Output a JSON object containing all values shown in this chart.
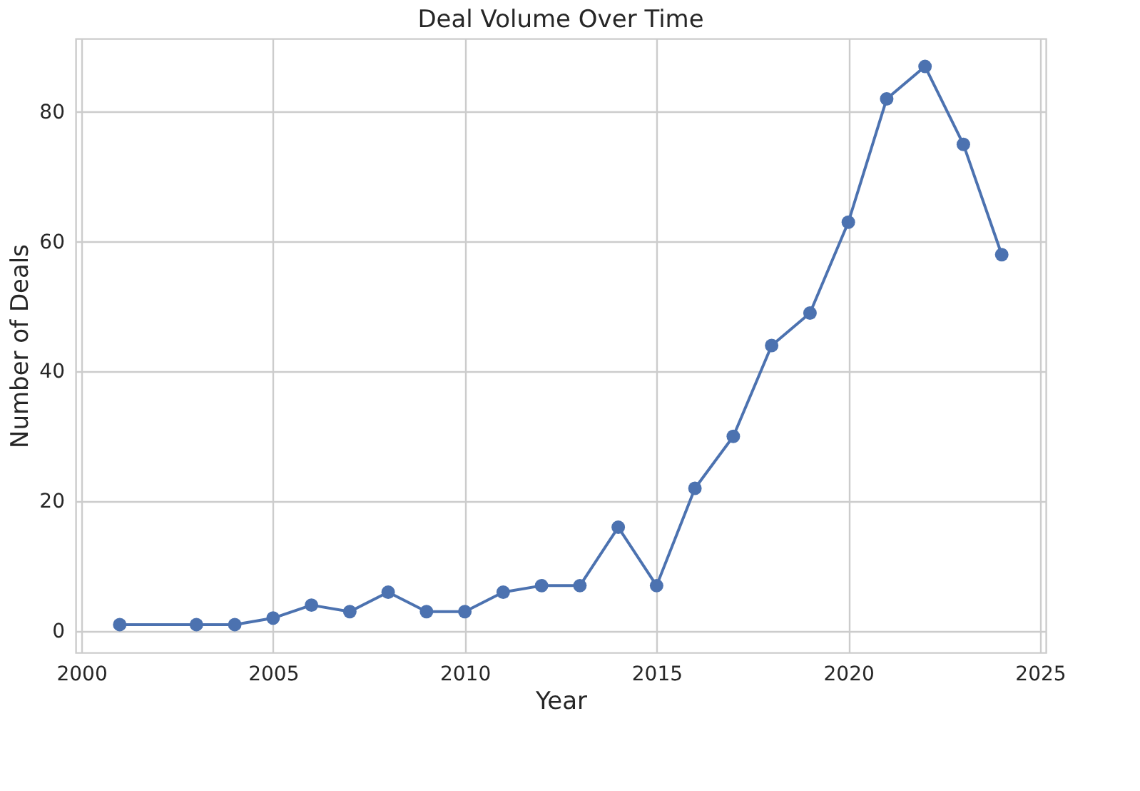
{
  "chart_data": {
    "type": "line",
    "title": "Deal Volume Over Time",
    "xlabel": "Year",
    "ylabel": "Number of Deals",
    "x": [
      2001,
      2003,
      2004,
      2005,
      2006,
      2007,
      2008,
      2009,
      2010,
      2011,
      2012,
      2013,
      2014,
      2015,
      2016,
      2017,
      2018,
      2019,
      2020,
      2021,
      2022,
      2023,
      2024
    ],
    "series": [
      {
        "color": "#4c72b0",
        "values": [
          1,
          1,
          1,
          2,
          4,
          3,
          6,
          3,
          3,
          6,
          7,
          7,
          16,
          7,
          22,
          30,
          44,
          49,
          63,
          82,
          87,
          75,
          58
        ]
      }
    ],
    "xlim": [
      1999.85,
      2025.15
    ],
    "xticks": [
      2000,
      2005,
      2010,
      2015,
      2020,
      2025
    ],
    "ylim": [
      -3.3,
      91.3
    ],
    "yticks": [
      0,
      20,
      40,
      60,
      80
    ],
    "grid": true,
    "marker": "circle",
    "line_style": "solid"
  }
}
